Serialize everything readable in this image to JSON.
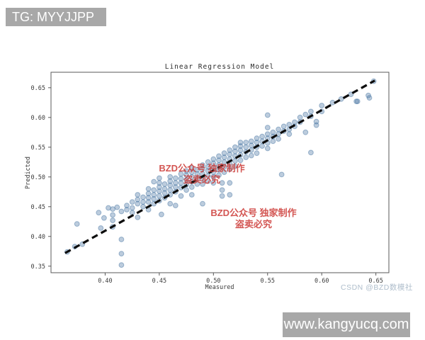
{
  "banners": {
    "top_left": "TG: MYYJJPP",
    "bottom_right": "www.kangyucq.com"
  },
  "watermarks": {
    "red_line1": "BZD公众号 独家制作",
    "red_line2": "盗卖必究",
    "csdn": "CSDN @BZD数模社"
  },
  "colors": {
    "banner_bg": "#a8a8a8",
    "banner_text": "#ffffff",
    "red_watermark": "#cc3834",
    "csdn_watermark": "#aebdcb",
    "point_fill": "#3e6e9e",
    "line_color": "#0d0d0d",
    "spine_color": "#595959"
  },
  "chart_data": {
    "type": "scatter",
    "title": "Linear Regression Model",
    "xlabel": "Measured",
    "ylabel": "Predicted",
    "xlim": [
      0.35,
      0.662
    ],
    "ylim": [
      0.339,
      0.676
    ],
    "xticks": [
      0.4,
      0.45,
      0.5,
      0.55,
      0.6,
      0.65
    ],
    "yticks": [
      0.35,
      0.4,
      0.45,
      0.5,
      0.55,
      0.6,
      0.65
    ],
    "grid": false,
    "legend": "none",
    "point_alpha": 0.35,
    "regression_line": {
      "style": "dashed",
      "x1": 0.363,
      "y1": 0.372,
      "x2": 0.649,
      "y2": 0.662
    },
    "points": [
      [
        0.365,
        0.374
      ],
      [
        0.372,
        0.383
      ],
      [
        0.374,
        0.421
      ],
      [
        0.379,
        0.387
      ],
      [
        0.394,
        0.44
      ],
      [
        0.396,
        0.414
      ],
      [
        0.399,
        0.431
      ],
      [
        0.403,
        0.448
      ],
      [
        0.407,
        0.446
      ],
      [
        0.407,
        0.436
      ],
      [
        0.407,
        0.427
      ],
      [
        0.407,
        0.416
      ],
      [
        0.411,
        0.449
      ],
      [
        0.415,
        0.442
      ],
      [
        0.415,
        0.395
      ],
      [
        0.415,
        0.371
      ],
      [
        0.415,
        0.352
      ],
      [
        0.42,
        0.452
      ],
      [
        0.42,
        0.445
      ],
      [
        0.425,
        0.458
      ],
      [
        0.425,
        0.448
      ],
      [
        0.425,
        0.44
      ],
      [
        0.43,
        0.47
      ],
      [
        0.43,
        0.462
      ],
      [
        0.43,
        0.455
      ],
      [
        0.43,
        0.432
      ],
      [
        0.435,
        0.466
      ],
      [
        0.435,
        0.458
      ],
      [
        0.435,
        0.45
      ],
      [
        0.44,
        0.48
      ],
      [
        0.44,
        0.472
      ],
      [
        0.44,
        0.465
      ],
      [
        0.44,
        0.458
      ],
      [
        0.44,
        0.445
      ],
      [
        0.445,
        0.492
      ],
      [
        0.445,
        0.478
      ],
      [
        0.445,
        0.47
      ],
      [
        0.445,
        0.463
      ],
      [
        0.445,
        0.455
      ],
      [
        0.45,
        0.498
      ],
      [
        0.45,
        0.49
      ],
      [
        0.45,
        0.483
      ],
      [
        0.45,
        0.476
      ],
      [
        0.45,
        0.468
      ],
      [
        0.45,
        0.46
      ],
      [
        0.452,
        0.437
      ],
      [
        0.455,
        0.488
      ],
      [
        0.455,
        0.48
      ],
      [
        0.455,
        0.473
      ],
      [
        0.455,
        0.465
      ],
      [
        0.46,
        0.5
      ],
      [
        0.46,
        0.493
      ],
      [
        0.46,
        0.486
      ],
      [
        0.46,
        0.478
      ],
      [
        0.46,
        0.47
      ],
      [
        0.46,
        0.455
      ],
      [
        0.465,
        0.498
      ],
      [
        0.465,
        0.49
      ],
      [
        0.465,
        0.483
      ],
      [
        0.465,
        0.475
      ],
      [
        0.465,
        0.452
      ],
      [
        0.47,
        0.505
      ],
      [
        0.47,
        0.497
      ],
      [
        0.47,
        0.49
      ],
      [
        0.47,
        0.482
      ],
      [
        0.47,
        0.468
      ],
      [
        0.475,
        0.51
      ],
      [
        0.475,
        0.503
      ],
      [
        0.475,
        0.495
      ],
      [
        0.475,
        0.487
      ],
      [
        0.475,
        0.478
      ],
      [
        0.48,
        0.515
      ],
      [
        0.48,
        0.508
      ],
      [
        0.48,
        0.5
      ],
      [
        0.48,
        0.492
      ],
      [
        0.48,
        0.483
      ],
      [
        0.48,
        0.47
      ],
      [
        0.485,
        0.512
      ],
      [
        0.485,
        0.505
      ],
      [
        0.485,
        0.497
      ],
      [
        0.485,
        0.488
      ],
      [
        0.49,
        0.52
      ],
      [
        0.49,
        0.513
      ],
      [
        0.49,
        0.505
      ],
      [
        0.49,
        0.497
      ],
      [
        0.49,
        0.488
      ],
      [
        0.49,
        0.455
      ],
      [
        0.495,
        0.525
      ],
      [
        0.495,
        0.517
      ],
      [
        0.495,
        0.51
      ],
      [
        0.495,
        0.502
      ],
      [
        0.495,
        0.493
      ],
      [
        0.5,
        0.53
      ],
      [
        0.5,
        0.523
      ],
      [
        0.5,
        0.515
      ],
      [
        0.5,
        0.508
      ],
      [
        0.5,
        0.5
      ],
      [
        0.5,
        0.49
      ],
      [
        0.505,
        0.535
      ],
      [
        0.505,
        0.528
      ],
      [
        0.505,
        0.52
      ],
      [
        0.505,
        0.512
      ],
      [
        0.505,
        0.503
      ],
      [
        0.508,
        0.49
      ],
      [
        0.508,
        0.478
      ],
      [
        0.508,
        0.468
      ],
      [
        0.51,
        0.54
      ],
      [
        0.51,
        0.533
      ],
      [
        0.51,
        0.525
      ],
      [
        0.51,
        0.517
      ],
      [
        0.51,
        0.508
      ],
      [
        0.515,
        0.545
      ],
      [
        0.515,
        0.538
      ],
      [
        0.515,
        0.53
      ],
      [
        0.515,
        0.522
      ],
      [
        0.515,
        0.513
      ],
      [
        0.515,
        0.49
      ],
      [
        0.515,
        0.47
      ],
      [
        0.52,
        0.55
      ],
      [
        0.52,
        0.543
      ],
      [
        0.52,
        0.535
      ],
      [
        0.52,
        0.527
      ],
      [
        0.52,
        0.518
      ],
      [
        0.525,
        0.558
      ],
      [
        0.525,
        0.552
      ],
      [
        0.525,
        0.545
      ],
      [
        0.525,
        0.537
      ],
      [
        0.525,
        0.528
      ],
      [
        0.53,
        0.558
      ],
      [
        0.53,
        0.55
      ],
      [
        0.53,
        0.542
      ],
      [
        0.53,
        0.533
      ],
      [
        0.535,
        0.56
      ],
      [
        0.535,
        0.553
      ],
      [
        0.535,
        0.545
      ],
      [
        0.535,
        0.536
      ],
      [
        0.54,
        0.565
      ],
      [
        0.54,
        0.558
      ],
      [
        0.54,
        0.55
      ],
      [
        0.54,
        0.54
      ],
      [
        0.545,
        0.568
      ],
      [
        0.545,
        0.56
      ],
      [
        0.545,
        0.552
      ],
      [
        0.55,
        0.604
      ],
      [
        0.55,
        0.583
      ],
      [
        0.55,
        0.572
      ],
      [
        0.55,
        0.565
      ],
      [
        0.55,
        0.557
      ],
      [
        0.55,
        0.548
      ],
      [
        0.555,
        0.575
      ],
      [
        0.555,
        0.568
      ],
      [
        0.555,
        0.56
      ],
      [
        0.56,
        0.58
      ],
      [
        0.56,
        0.572
      ],
      [
        0.56,
        0.564
      ],
      [
        0.563,
        0.504
      ],
      [
        0.565,
        0.585
      ],
      [
        0.565,
        0.577
      ],
      [
        0.57,
        0.588
      ],
      [
        0.57,
        0.58
      ],
      [
        0.57,
        0.572
      ],
      [
        0.575,
        0.592
      ],
      [
        0.575,
        0.585
      ],
      [
        0.58,
        0.6
      ],
      [
        0.58,
        0.592
      ],
      [
        0.585,
        0.605
      ],
      [
        0.585,
        0.575
      ],
      [
        0.59,
        0.61
      ],
      [
        0.59,
        0.602
      ],
      [
        0.59,
        0.541
      ],
      [
        0.595,
        0.593
      ],
      [
        0.595,
        0.587
      ],
      [
        0.6,
        0.62
      ],
      [
        0.6,
        0.61
      ],
      [
        0.61,
        0.625
      ],
      [
        0.618,
        0.631
      ],
      [
        0.627,
        0.639
      ],
      [
        0.632,
        0.627
      ],
      [
        0.633,
        0.627
      ],
      [
        0.643,
        0.637
      ],
      [
        0.644,
        0.633
      ],
      [
        0.648,
        0.661
      ]
    ]
  }
}
